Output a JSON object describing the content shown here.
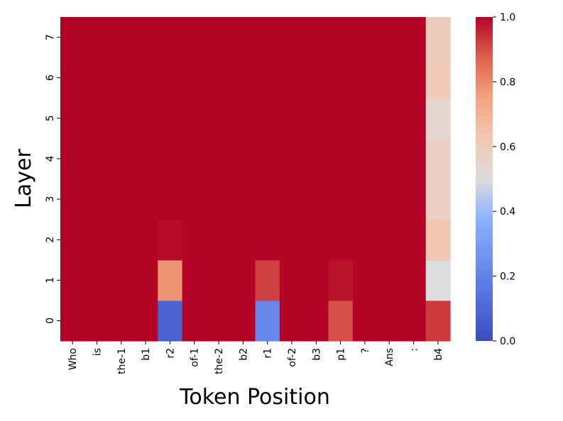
{
  "chart_data": {
    "type": "heatmap",
    "title": "",
    "xlabel": "Token Position",
    "ylabel": "Layer",
    "x_categories": [
      "Who",
      "is",
      "the-1",
      "b1",
      "r2",
      "of-1",
      "the-2",
      "b2",
      "r1",
      "of-2",
      "b3",
      "p1",
      "?",
      "Ans",
      ":",
      "b4"
    ],
    "y_categories": [
      "0",
      "1",
      "2",
      "3",
      "4",
      "5",
      "6",
      "7"
    ],
    "values": [
      [
        1.0,
        1.0,
        1.0,
        1.0,
        0.08,
        1.0,
        1.0,
        1.0,
        0.22,
        1.0,
        1.0,
        0.9,
        1.0,
        1.0,
        1.0,
        0.93
      ],
      [
        1.0,
        1.0,
        1.0,
        1.0,
        0.78,
        1.0,
        1.0,
        1.0,
        0.92,
        1.0,
        1.0,
        0.98,
        1.0,
        1.0,
        1.0,
        0.5
      ],
      [
        1.0,
        1.0,
        1.0,
        1.0,
        0.99,
        1.0,
        1.0,
        1.0,
        1.0,
        1.0,
        1.0,
        1.0,
        1.0,
        1.0,
        1.0,
        0.63
      ],
      [
        1.0,
        1.0,
        1.0,
        1.0,
        1.0,
        1.0,
        1.0,
        1.0,
        1.0,
        1.0,
        1.0,
        1.0,
        1.0,
        1.0,
        1.0,
        0.58
      ],
      [
        1.0,
        1.0,
        1.0,
        1.0,
        1.0,
        1.0,
        1.0,
        1.0,
        1.0,
        1.0,
        1.0,
        1.0,
        1.0,
        1.0,
        1.0,
        0.58
      ],
      [
        1.0,
        1.0,
        1.0,
        1.0,
        1.0,
        1.0,
        1.0,
        1.0,
        1.0,
        1.0,
        1.0,
        1.0,
        1.0,
        1.0,
        1.0,
        0.54
      ],
      [
        1.0,
        1.0,
        1.0,
        1.0,
        1.0,
        1.0,
        1.0,
        1.0,
        1.0,
        1.0,
        1.0,
        1.0,
        1.0,
        1.0,
        1.0,
        0.61
      ],
      [
        1.0,
        1.0,
        1.0,
        1.0,
        1.0,
        1.0,
        1.0,
        1.0,
        1.0,
        1.0,
        1.0,
        1.0,
        1.0,
        1.0,
        1.0,
        0.6
      ]
    ],
    "colormap": "coolwarm",
    "vmin": 0.0,
    "vmax": 1.0,
    "colorbar_ticks": [
      "0.0",
      "0.2",
      "0.4",
      "0.6",
      "0.8",
      "1.0"
    ],
    "colorbar_tick_values": [
      0.0,
      0.2,
      0.4,
      0.6,
      0.8,
      1.0
    ],
    "y_axis_inverted": true,
    "grid": false,
    "legend": "colorbar-right"
  }
}
